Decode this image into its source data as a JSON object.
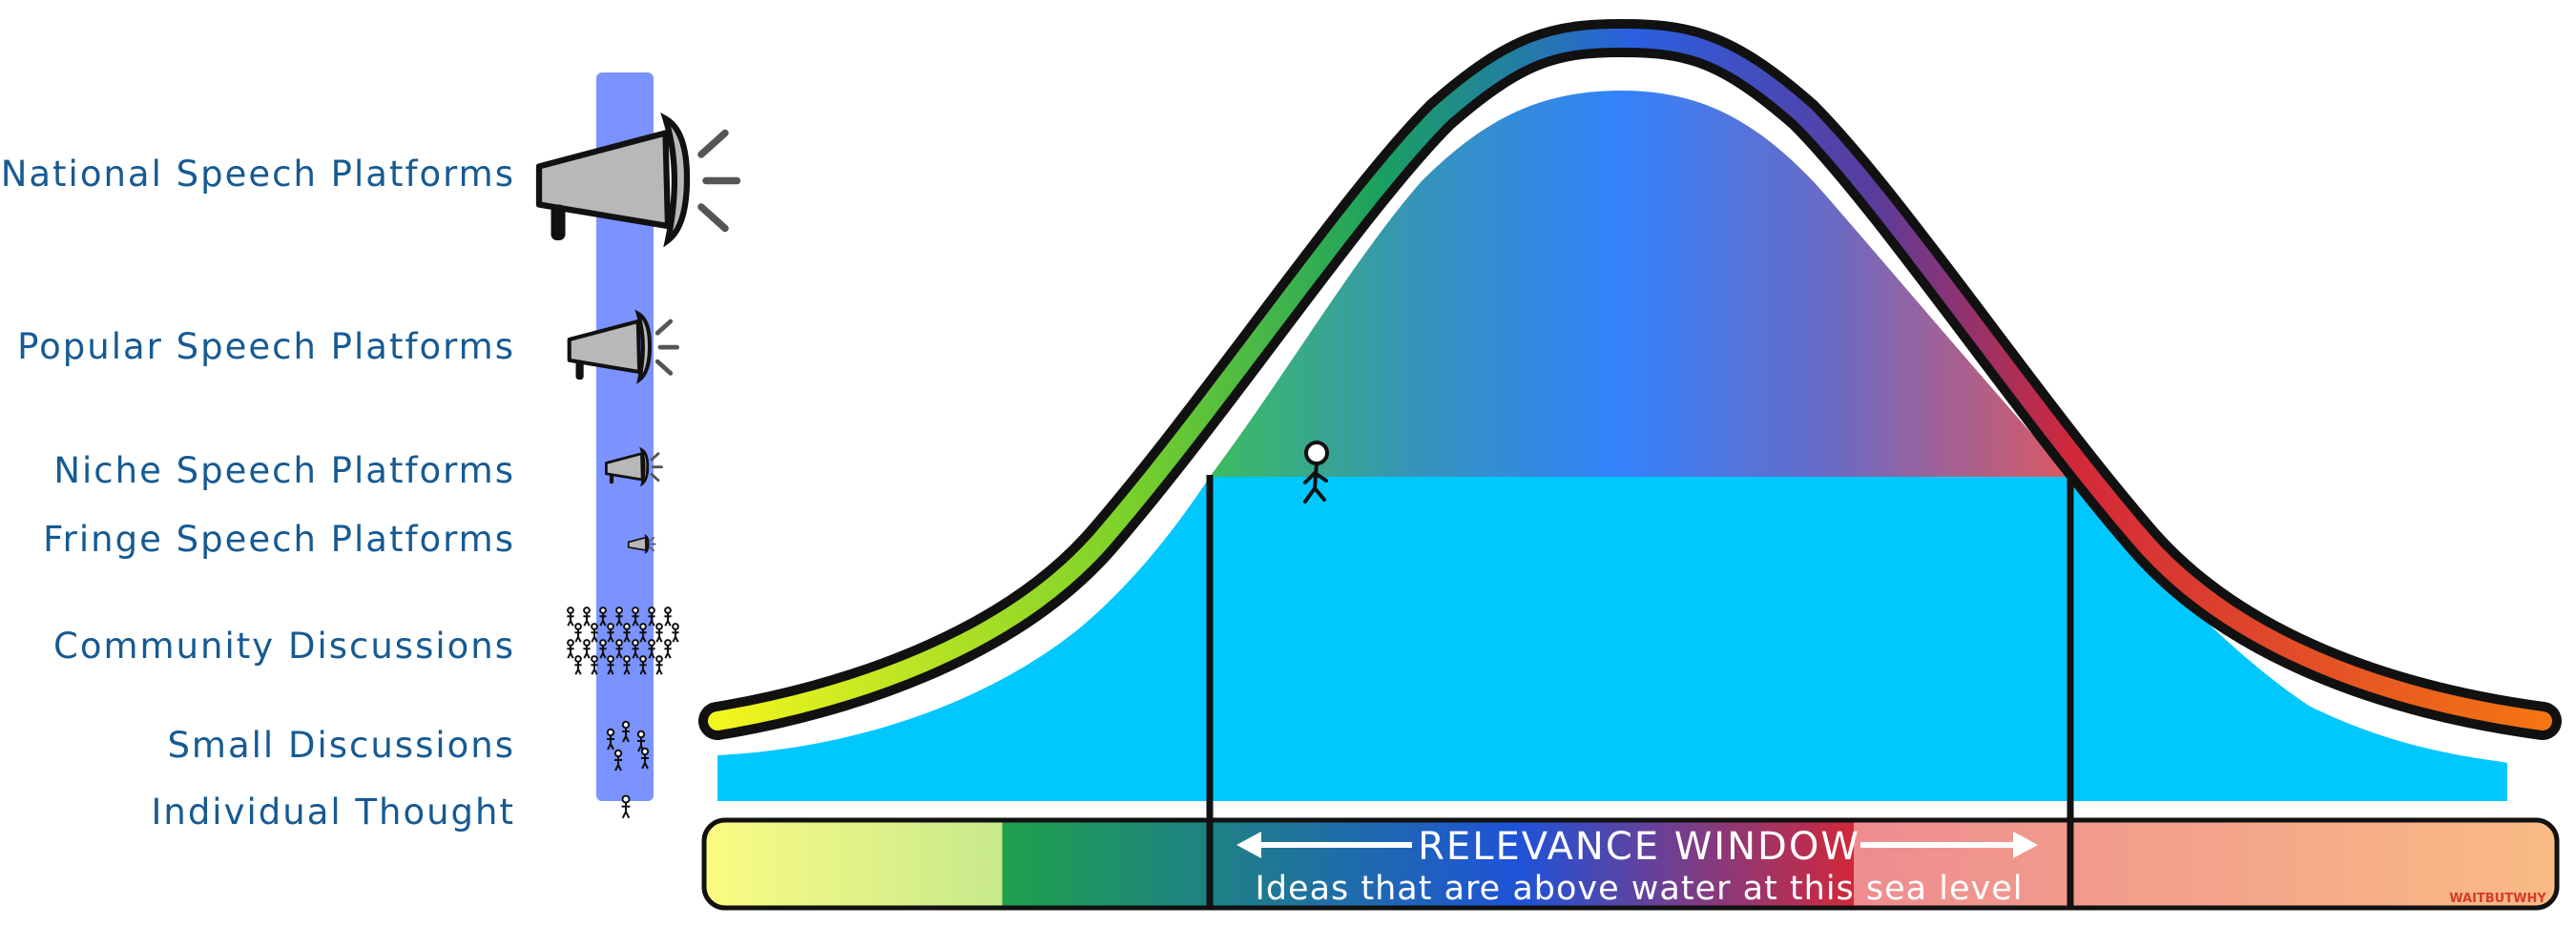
{
  "levels": [
    {
      "label": "National Speech Platforms"
    },
    {
      "label": "Popular Speech Platforms"
    },
    {
      "label": "Niche Speech Platforms"
    },
    {
      "label": "Fringe Speech Platforms"
    },
    {
      "label": "Community Discussions"
    },
    {
      "label": "Small Discussions"
    },
    {
      "label": "Individual Thought"
    }
  ],
  "window": {
    "title": "RELEVANCE WINDOW",
    "subtitle": "Ideas that are above water at this sea level"
  },
  "signature": "WAITBUTWHY",
  "colors": {
    "label_text": "#165a93",
    "pole": "#7b93ff",
    "water": "#00c8ff",
    "curve_left": "#e6f52a",
    "curve_mid": "#2b60e0",
    "curve_right": "#f07010"
  },
  "icons": [
    "megaphone-icon",
    "crowd-icon",
    "stick-figure-icon"
  ]
}
